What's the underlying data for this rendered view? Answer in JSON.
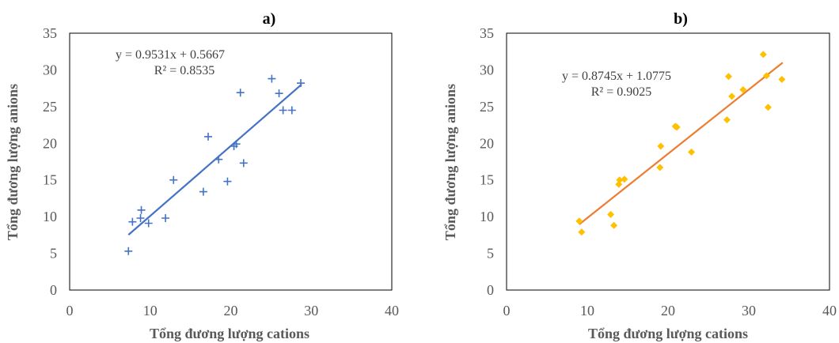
{
  "chart_data": [
    {
      "type": "scatter",
      "title": "a)",
      "xlabel": "Tổng đương lượng cations",
      "ylabel": "Tổng đương lượng anions",
      "xlim": [
        0,
        40
      ],
      "ylim": [
        0,
        35
      ],
      "xticks": [
        "0",
        "10",
        "20",
        "30",
        "40"
      ],
      "yticks": [
        "0",
        "5",
        "10",
        "15",
        "20",
        "25",
        "30",
        "35"
      ],
      "marker": "plus",
      "marker_color": "#4472C4",
      "trendline_color": "#4472C4",
      "equation": "y = 0.9531x + 0.5667",
      "r2": "R² = 0.8535",
      "trendline": {
        "slope": 0.9531,
        "intercept": 0.5667,
        "x_range": [
          7.3,
          28.8
        ]
      },
      "points": [
        [
          7.3,
          5.3
        ],
        [
          7.8,
          9.3
        ],
        [
          8.8,
          9.8
        ],
        [
          8.9,
          10.9
        ],
        [
          9.8,
          9.1
        ],
        [
          11.9,
          9.8
        ],
        [
          12.9,
          15.0
        ],
        [
          16.6,
          13.4
        ],
        [
          17.2,
          20.9
        ],
        [
          18.5,
          17.8
        ],
        [
          19.6,
          14.8
        ],
        [
          20.4,
          19.6
        ],
        [
          20.7,
          19.9
        ],
        [
          21.2,
          26.9
        ],
        [
          21.6,
          17.3
        ],
        [
          25.1,
          28.8
        ],
        [
          26.0,
          26.8
        ],
        [
          26.5,
          24.5
        ],
        [
          27.6,
          24.5
        ],
        [
          28.7,
          28.2
        ]
      ]
    },
    {
      "type": "scatter",
      "title": "b)",
      "xlabel": "Tổng đương lượng cations",
      "ylabel": "Tổng đương lượng anions",
      "xlim": [
        0,
        40
      ],
      "ylim": [
        0,
        35
      ],
      "xticks": [
        "0",
        "10",
        "20",
        "30",
        "40"
      ],
      "yticks": [
        "0",
        "5",
        "10",
        "15",
        "20",
        "25",
        "30",
        "35"
      ],
      "marker": "diamond",
      "marker_color": "#FFC000",
      "trendline_color": "#ED7D31",
      "equation": "y = 0.8745x + 1.0775",
      "r2": "R² = 0.9025",
      "trendline": {
        "slope": 0.8745,
        "intercept": 1.0775,
        "x_range": [
          9.0,
          34.2
        ]
      },
      "points": [
        [
          9.0,
          9.4
        ],
        [
          9.3,
          7.9
        ],
        [
          12.9,
          10.3
        ],
        [
          13.3,
          8.8
        ],
        [
          13.9,
          14.4
        ],
        [
          14.0,
          15.0
        ],
        [
          14.6,
          15.1
        ],
        [
          19.0,
          16.7
        ],
        [
          19.1,
          19.6
        ],
        [
          20.9,
          22.3
        ],
        [
          21.1,
          22.2
        ],
        [
          22.9,
          18.8
        ],
        [
          27.3,
          23.2
        ],
        [
          27.5,
          29.1
        ],
        [
          27.9,
          26.4
        ],
        [
          29.3,
          27.3
        ],
        [
          31.8,
          32.1
        ],
        [
          32.2,
          29.2
        ],
        [
          32.4,
          24.9
        ],
        [
          34.1,
          28.7
        ]
      ]
    }
  ]
}
